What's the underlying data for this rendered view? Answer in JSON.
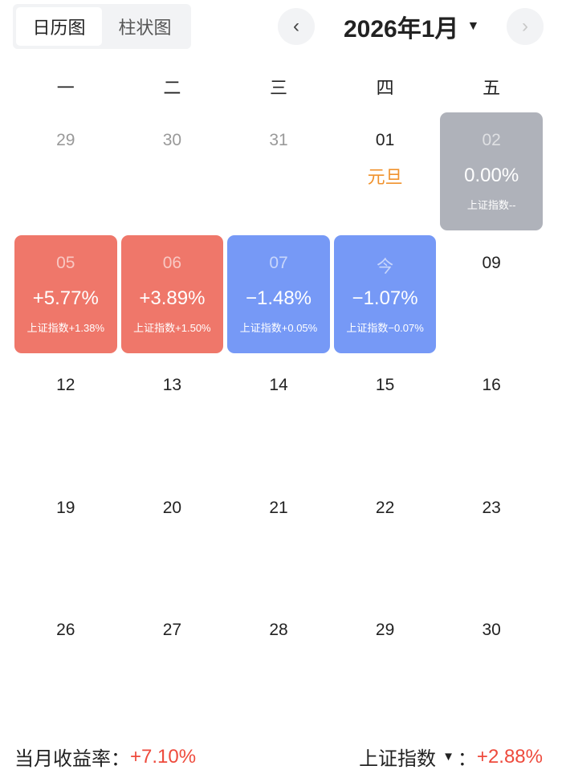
{
  "tabs": [
    {
      "label": "日历图",
      "active": true
    },
    {
      "label": "柱状图",
      "active": false
    }
  ],
  "header": {
    "month": "2026年1月",
    "prev": "‹",
    "next": "›",
    "dropdown": "▼"
  },
  "weekdays": [
    "一",
    "二",
    "三",
    "四",
    "五"
  ],
  "days": [
    {
      "day": "29",
      "type": "other"
    },
    {
      "day": "30",
      "type": "other"
    },
    {
      "day": "31",
      "type": "other"
    },
    {
      "day": "01",
      "type": "holiday",
      "holiday": "元旦"
    },
    {
      "day": "02",
      "type": "gray",
      "pct": "0.00%",
      "index": "上证指数--"
    },
    {
      "day": "05",
      "type": "red",
      "pct": "+5.77%",
      "index": "上证指数+1.38%"
    },
    {
      "day": "06",
      "type": "red",
      "pct": "+3.89%",
      "index": "上证指数+1.50%"
    },
    {
      "day": "07",
      "type": "blue",
      "pct": "−1.48%",
      "index": "上证指数+0.05%"
    },
    {
      "day": "今",
      "type": "blue",
      "pct": "−1.07%",
      "index": "上证指数−0.07%"
    },
    {
      "day": "09"
    },
    {
      "day": "12"
    },
    {
      "day": "13"
    },
    {
      "day": "14"
    },
    {
      "day": "15"
    },
    {
      "day": "16"
    },
    {
      "day": "19"
    },
    {
      "day": "20"
    },
    {
      "day": "21"
    },
    {
      "day": "22"
    },
    {
      "day": "23"
    },
    {
      "day": "26"
    },
    {
      "day": "27"
    },
    {
      "day": "28"
    },
    {
      "day": "29"
    },
    {
      "day": "30"
    }
  ],
  "footer": {
    "monthly_label": "当月收益率：",
    "monthly_value": "+7.10%",
    "index_label": "上证指数",
    "index_value": "+2.88%",
    "colon": "：",
    "dropdown": "▼"
  },
  "colors": {
    "up": "#ef776a",
    "down": "#7699f6",
    "flat": "#afb2ba",
    "holiday": "#f0922e",
    "footer_value": "#ee4a3c"
  }
}
